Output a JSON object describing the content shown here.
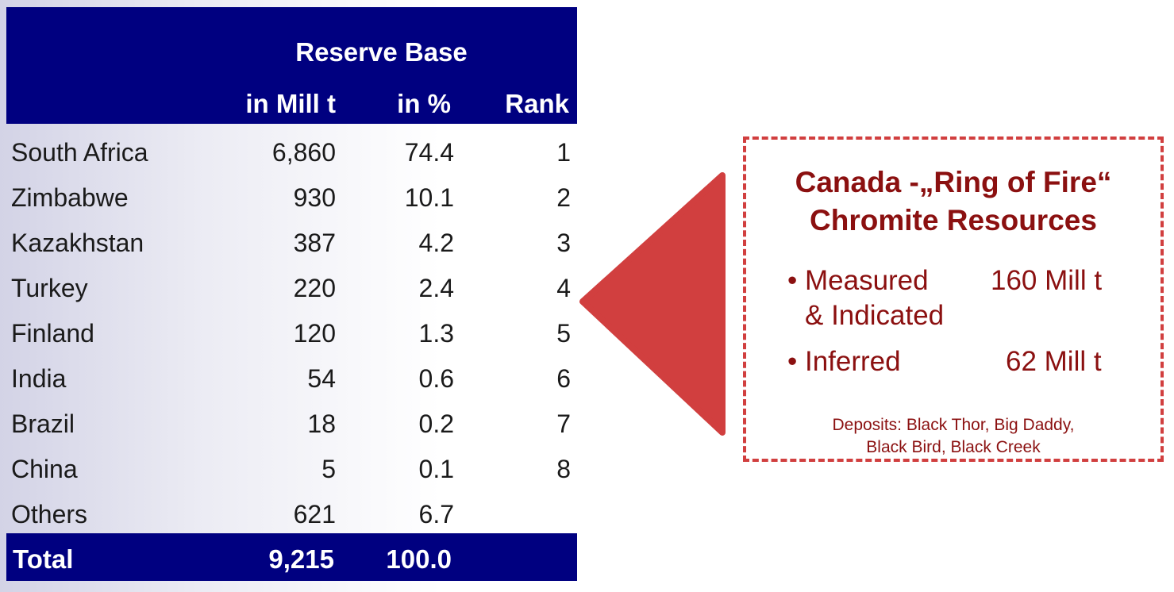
{
  "table": {
    "title": "Reserve Base",
    "col_mill": "in Mill t",
    "col_pct": "in %",
    "col_rank": "Rank",
    "rows": [
      {
        "country": "South Africa",
        "mill": "6,860",
        "pct": "74.4",
        "rank": "1"
      },
      {
        "country": "Zimbabwe",
        "mill": "930",
        "pct": "10.1",
        "rank": "2"
      },
      {
        "country": "Kazakhstan",
        "mill": "387",
        "pct": "4.2",
        "rank": "3"
      },
      {
        "country": "Turkey",
        "mill": "220",
        "pct": "2.4",
        "rank": "4"
      },
      {
        "country": "Finland",
        "mill": "120",
        "pct": "1.3",
        "rank": "5"
      },
      {
        "country": "India",
        "mill": "54",
        "pct": "0.6",
        "rank": "6"
      },
      {
        "country": "Brazil",
        "mill": "18",
        "pct": "0.2",
        "rank": "7"
      },
      {
        "country": "China",
        "mill": "5",
        "pct": "0.1",
        "rank": "8"
      },
      {
        "country": "Others",
        "mill": "621",
        "pct": "6.7",
        "rank": ""
      }
    ],
    "total": {
      "label": "Total",
      "mill": "9,215",
      "pct": "100.0"
    }
  },
  "callout": {
    "title_line1": "Canada -„Ring of Fire“",
    "title_line2": "Chromite Resources",
    "measured_label": "• Measured",
    "measured_label2": "& Indicated",
    "measured_value": "160 Mill t",
    "inferred_label": "• Inferred",
    "inferred_value": "62 Mill t",
    "deposits_line1": "Deposits: Black Thor, Big Daddy,",
    "deposits_line2": "Black Bird, Black Creek"
  },
  "colors": {
    "header_bg": "#000080",
    "callout_text": "#8b1010",
    "arrow": "#d13f3f"
  }
}
